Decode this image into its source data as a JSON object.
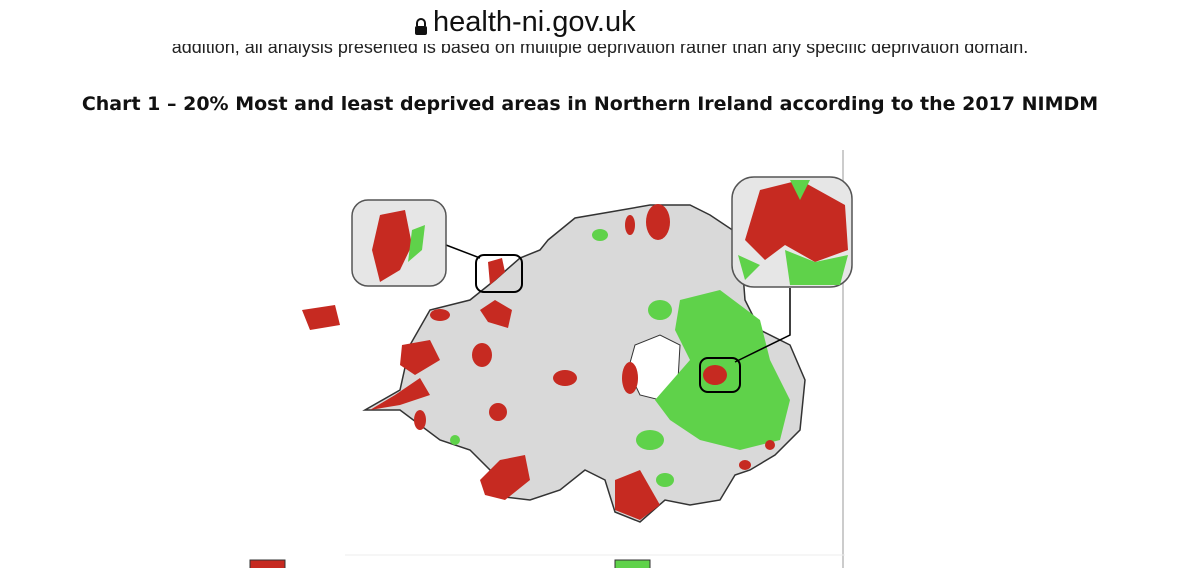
{
  "browser": {
    "url": "health-ni.gov.uk"
  },
  "document": {
    "cut_line": "addition, all analysis presented is based on multiple deprivation rather than any specific deprivation domain.",
    "chart_title": "Chart 1 – 20% Most and least deprived areas in Northern Ireland according to the 2017 NIMDM"
  }
}
